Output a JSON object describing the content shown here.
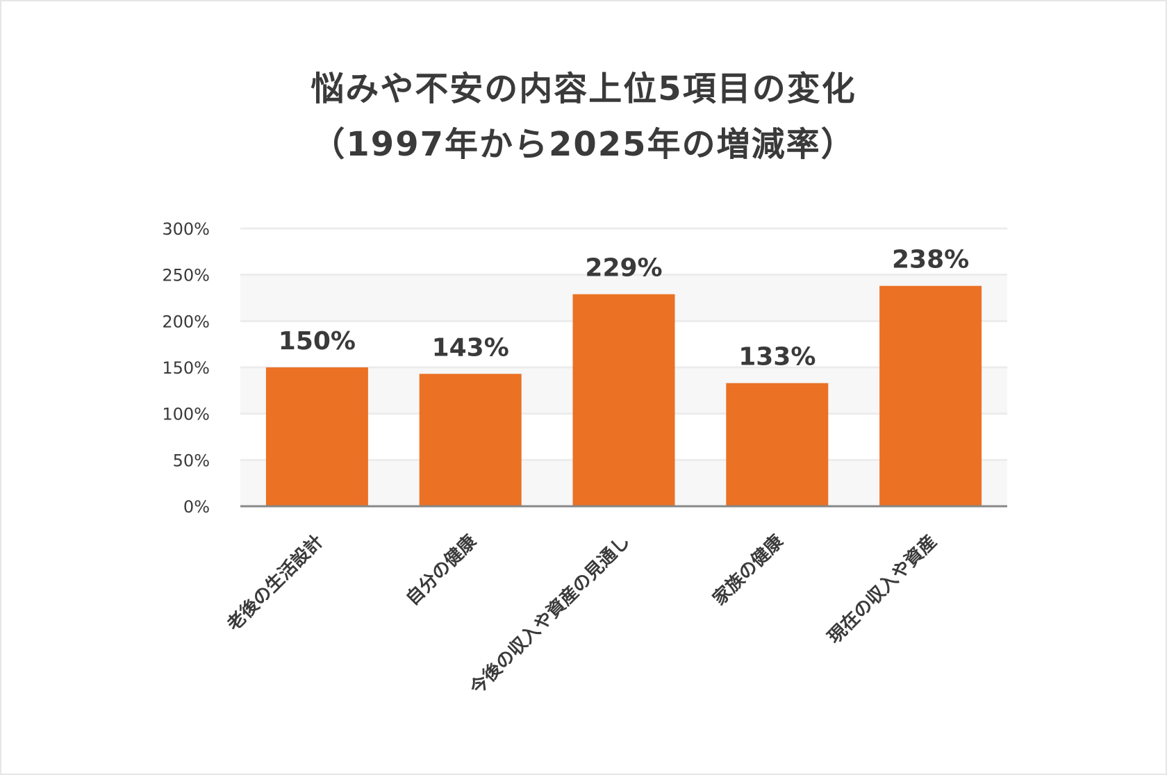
{
  "chart_data": {
    "type": "bar",
    "title_lines": [
      "悩みや不安の内容上位5項目の変化",
      "（1997年から2025年の増減率）"
    ],
    "categories": [
      "老後の生活設計",
      "自分の健康",
      "今後の収入や資産の見通し",
      "家族の健康",
      "現在の収入や資産"
    ],
    "values": [
      150,
      143,
      229,
      133,
      238
    ],
    "data_labels": [
      "150%",
      "143%",
      "229%",
      "133%",
      "238%"
    ],
    "yticks": [
      0,
      50,
      100,
      150,
      200,
      250,
      300
    ],
    "ytick_labels": [
      "0%",
      "50%",
      "100%",
      "150%",
      "200%",
      "250%",
      "300%"
    ],
    "ylim": [
      0,
      300
    ],
    "grid": true,
    "legend": "none",
    "colors": {
      "bar": "#EB7125",
      "text": "#3a3a3a",
      "band": "#f7f7f7",
      "grid": "#ececec",
      "axis": "#888888"
    }
  }
}
